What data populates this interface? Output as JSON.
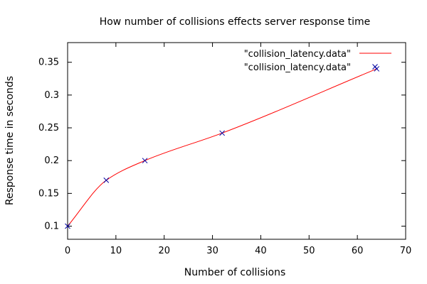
{
  "chart_data": {
    "type": "line",
    "title": "How number of collisions effects server response time",
    "xlabel": "Number of collisions",
    "ylabel": "Response time in seconds",
    "xlim": [
      0,
      70
    ],
    "ylim": [
      0.08,
      0.38
    ],
    "x_ticks": [
      0,
      10,
      20,
      30,
      40,
      50,
      60,
      70
    ],
    "y_ticks": [
      0.1,
      0.15,
      0.2,
      0.25,
      0.3,
      0.35
    ],
    "x_tick_labels": [
      "0",
      "10",
      "20",
      "30",
      "40",
      "50",
      "60",
      "70"
    ],
    "y_tick_labels": [
      "0.1",
      "0.15",
      "0.2",
      "0.25",
      "0.3",
      "0.35"
    ],
    "grid": false,
    "legend_position": "top-right",
    "series": [
      {
        "name": "\"collision_latency.data\"",
        "style": "smooth-line",
        "color": "#ff0000",
        "x": [
          0,
          8,
          16,
          32,
          64
        ],
        "y": [
          0.1,
          0.17,
          0.2,
          0.242,
          0.34
        ]
      },
      {
        "name": "\"collision_latency.data\"",
        "style": "points",
        "marker": "x",
        "color": "#0000a0",
        "x": [
          0,
          8,
          16,
          32,
          64
        ],
        "y": [
          0.1,
          0.17,
          0.2,
          0.242,
          0.34
        ]
      }
    ]
  }
}
